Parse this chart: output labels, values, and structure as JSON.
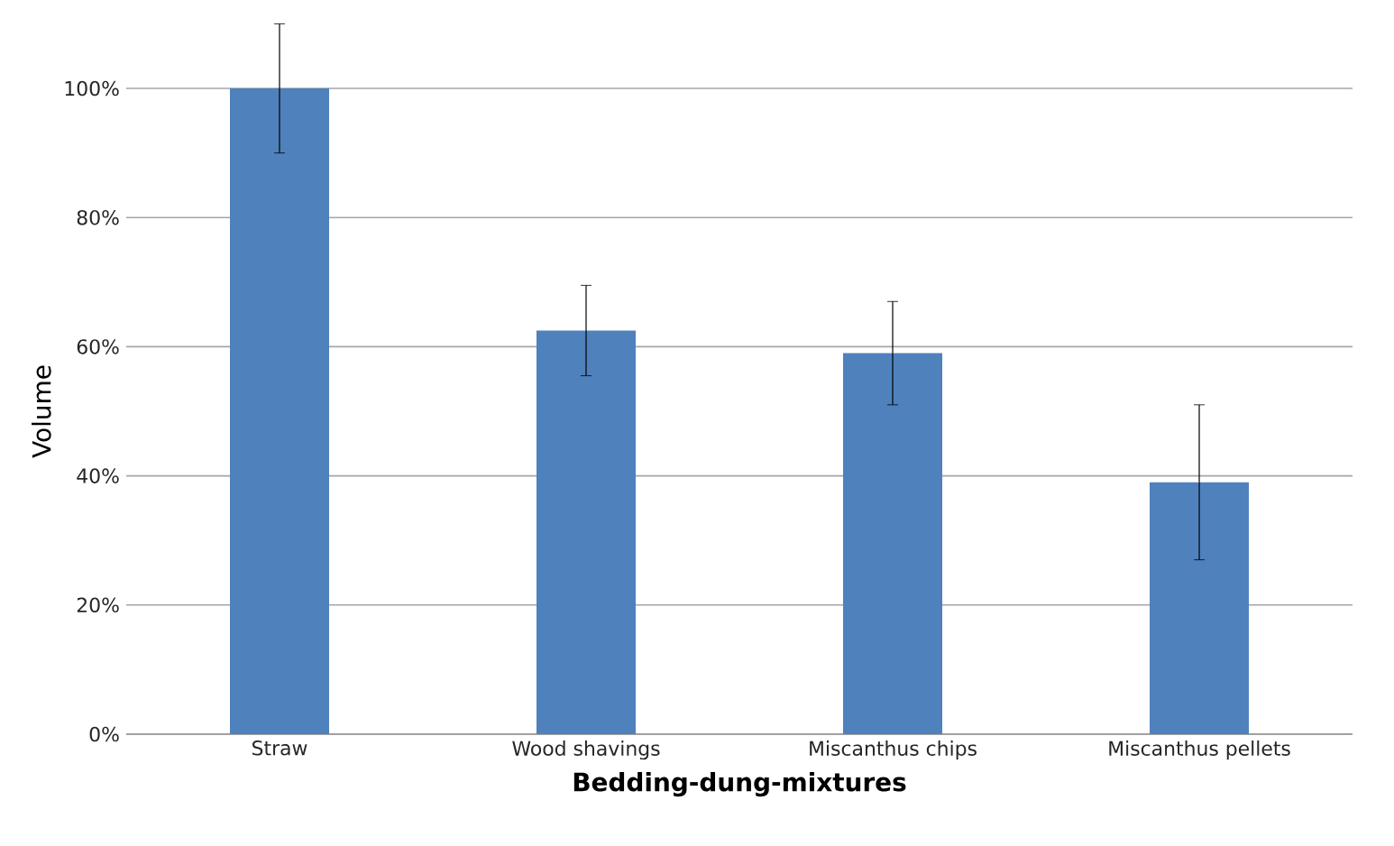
{
  "chart_data": {
    "type": "bar",
    "xlabel": "**Bedding-dung-mixtures**",
    "ylabel": "Volume",
    "categories": [
      "Straw",
      "Wood shavings",
      "Miscanthus chips",
      "Miscanthus pellets"
    ],
    "values": [
      100,
      62.5,
      59,
      39
    ],
    "errors": [
      10,
      7,
      8,
      12
    ],
    "color": "#4f81bd",
    "ylim": [
      0,
      100
    ],
    "yticks": [
      {
        "value": 0,
        "label": "0%"
      },
      {
        "value": 20,
        "label": "20%"
      },
      {
        "value": 40,
        "label": "40%"
      },
      {
        "value": 60,
        "label": "60%"
      },
      {
        "value": 80,
        "label": "80%"
      },
      {
        "value": 100,
        "label": "100%"
      }
    ],
    "grid": "y"
  }
}
